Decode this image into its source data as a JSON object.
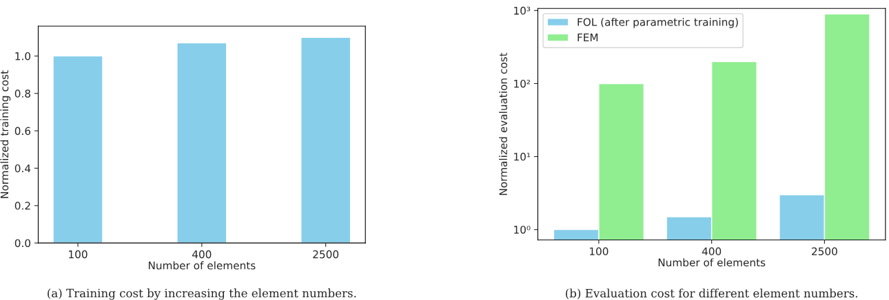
{
  "chart_data": [
    {
      "type": "bar",
      "xlabel": "Number of elements",
      "ylabel": "Normalized training cost",
      "categories": [
        "100",
        "400",
        "2500"
      ],
      "series": [
        {
          "color": "#87ceeb",
          "values": [
            1.0,
            1.07,
            1.1
          ]
        }
      ],
      "ylim": [
        0,
        1.16
      ],
      "yticks": [
        {
          "value": 0,
          "label": "0.0"
        },
        0.2,
        0.4,
        0.6,
        0.8,
        {
          "value": 1,
          "label": "1.0"
        }
      ],
      "annotations": [
        "(a) Training cost by increasing the element numbers."
      ],
      "grid": false,
      "legend": false
    },
    {
      "type": "bar",
      "xlabel": "Number of elements",
      "ylabel": "Normalized evaluation cost",
      "categories": [
        "100",
        "400",
        "2500"
      ],
      "series": [
        {
          "name": "FOL (after parametric training)",
          "color": "#87ceeb",
          "values": [
            1,
            1.5,
            3
          ]
        },
        {
          "name": "FEM",
          "color": "#90ee90",
          "values": [
            100,
            200,
            900
          ]
        }
      ],
      "log": true,
      "ylim": [
        0.72,
        1070
      ],
      "yticks": [
        {
          "value": 1,
          "label": "10⁰"
        },
        {
          "value": 10,
          "label": "10¹"
        },
        {
          "value": 100,
          "label": "10²"
        },
        {
          "value": 1000,
          "label": "10³"
        }
      ],
      "annotations": [
        "(b) Evaluation cost for different element numbers."
      ],
      "grid": false,
      "legend": "top left"
    }
  ]
}
